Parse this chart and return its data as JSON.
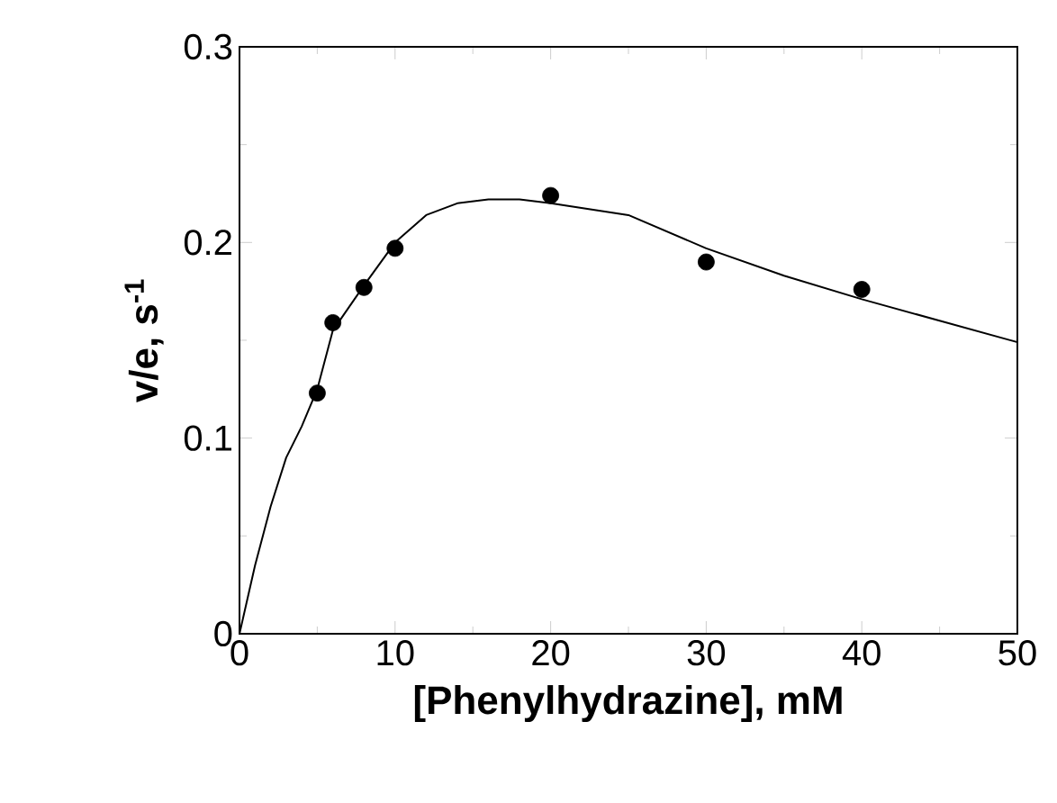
{
  "chart_data": {
    "type": "scatter",
    "xlabel": "[Phenylhydrazine], mM",
    "ylabel": "v/e, s$^{-1}$",
    "xlim": [
      0,
      50
    ],
    "ylim": [
      0,
      0.3
    ],
    "xticks": [
      0,
      10,
      20,
      30,
      40,
      50
    ],
    "yticks": [
      0,
      0.1,
      0.2,
      0.3
    ],
    "grid": false,
    "series": [
      {
        "color": "#000000",
        "marker": "circle",
        "x": [
          5,
          6,
          8,
          10,
          20,
          30,
          40
        ],
        "values": [
          0.123,
          0.159,
          0.177,
          0.197,
          0.224,
          0.19,
          0.176
        ]
      },
      {
        "type": "line",
        "color": "#000000",
        "marker": "none",
        "line_style": "solid",
        "x": [
          0,
          1,
          2,
          3,
          4,
          5,
          6,
          8,
          10,
          12,
          14,
          16,
          18,
          20,
          25,
          30,
          35,
          40,
          45,
          50
        ],
        "values": [
          0,
          0.035,
          0.065,
          0.09,
          0.106,
          0.125,
          0.155,
          0.178,
          0.2,
          0.214,
          0.22,
          0.222,
          0.222,
          0.22,
          0.214,
          0.197,
          0.183,
          0.171,
          0.16,
          0.149
        ]
      }
    ]
  }
}
